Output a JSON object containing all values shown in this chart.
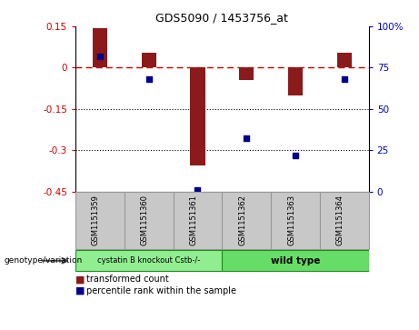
{
  "title": "GDS5090 / 1453756_at",
  "samples": [
    "GSM1151359",
    "GSM1151360",
    "GSM1151361",
    "GSM1151362",
    "GSM1151363",
    "GSM1151364"
  ],
  "bar_values": [
    0.143,
    0.055,
    -0.355,
    -0.045,
    -0.1,
    0.055
  ],
  "percentile_values": [
    82,
    68,
    1,
    32,
    22,
    68
  ],
  "ylim_left": [
    -0.45,
    0.15
  ],
  "ylim_right": [
    0,
    100
  ],
  "yticks_left": [
    0.15,
    0.0,
    -0.15,
    -0.3,
    -0.45
  ],
  "yticks_right": [
    100,
    75,
    50,
    25,
    0
  ],
  "bar_color": "#8b1a1a",
  "dot_color": "#00008b",
  "zero_line_color": "#cc0000",
  "grid_line_color": "#000000",
  "group1_label": "cystatin B knockout Cstb-/-",
  "group2_label": "wild type",
  "group1_indices": [
    0,
    1,
    2
  ],
  "group2_indices": [
    3,
    4,
    5
  ],
  "group1_color": "#90ee90",
  "group2_color": "#66dd66",
  "genotype_label": "genotype/variation",
  "legend_bar_label": "transformed count",
  "legend_dot_label": "percentile rank within the sample",
  "bg_color": "#ffffff",
  "plot_bg_color": "#ffffff",
  "header_bg_color": "#c8c8c8"
}
